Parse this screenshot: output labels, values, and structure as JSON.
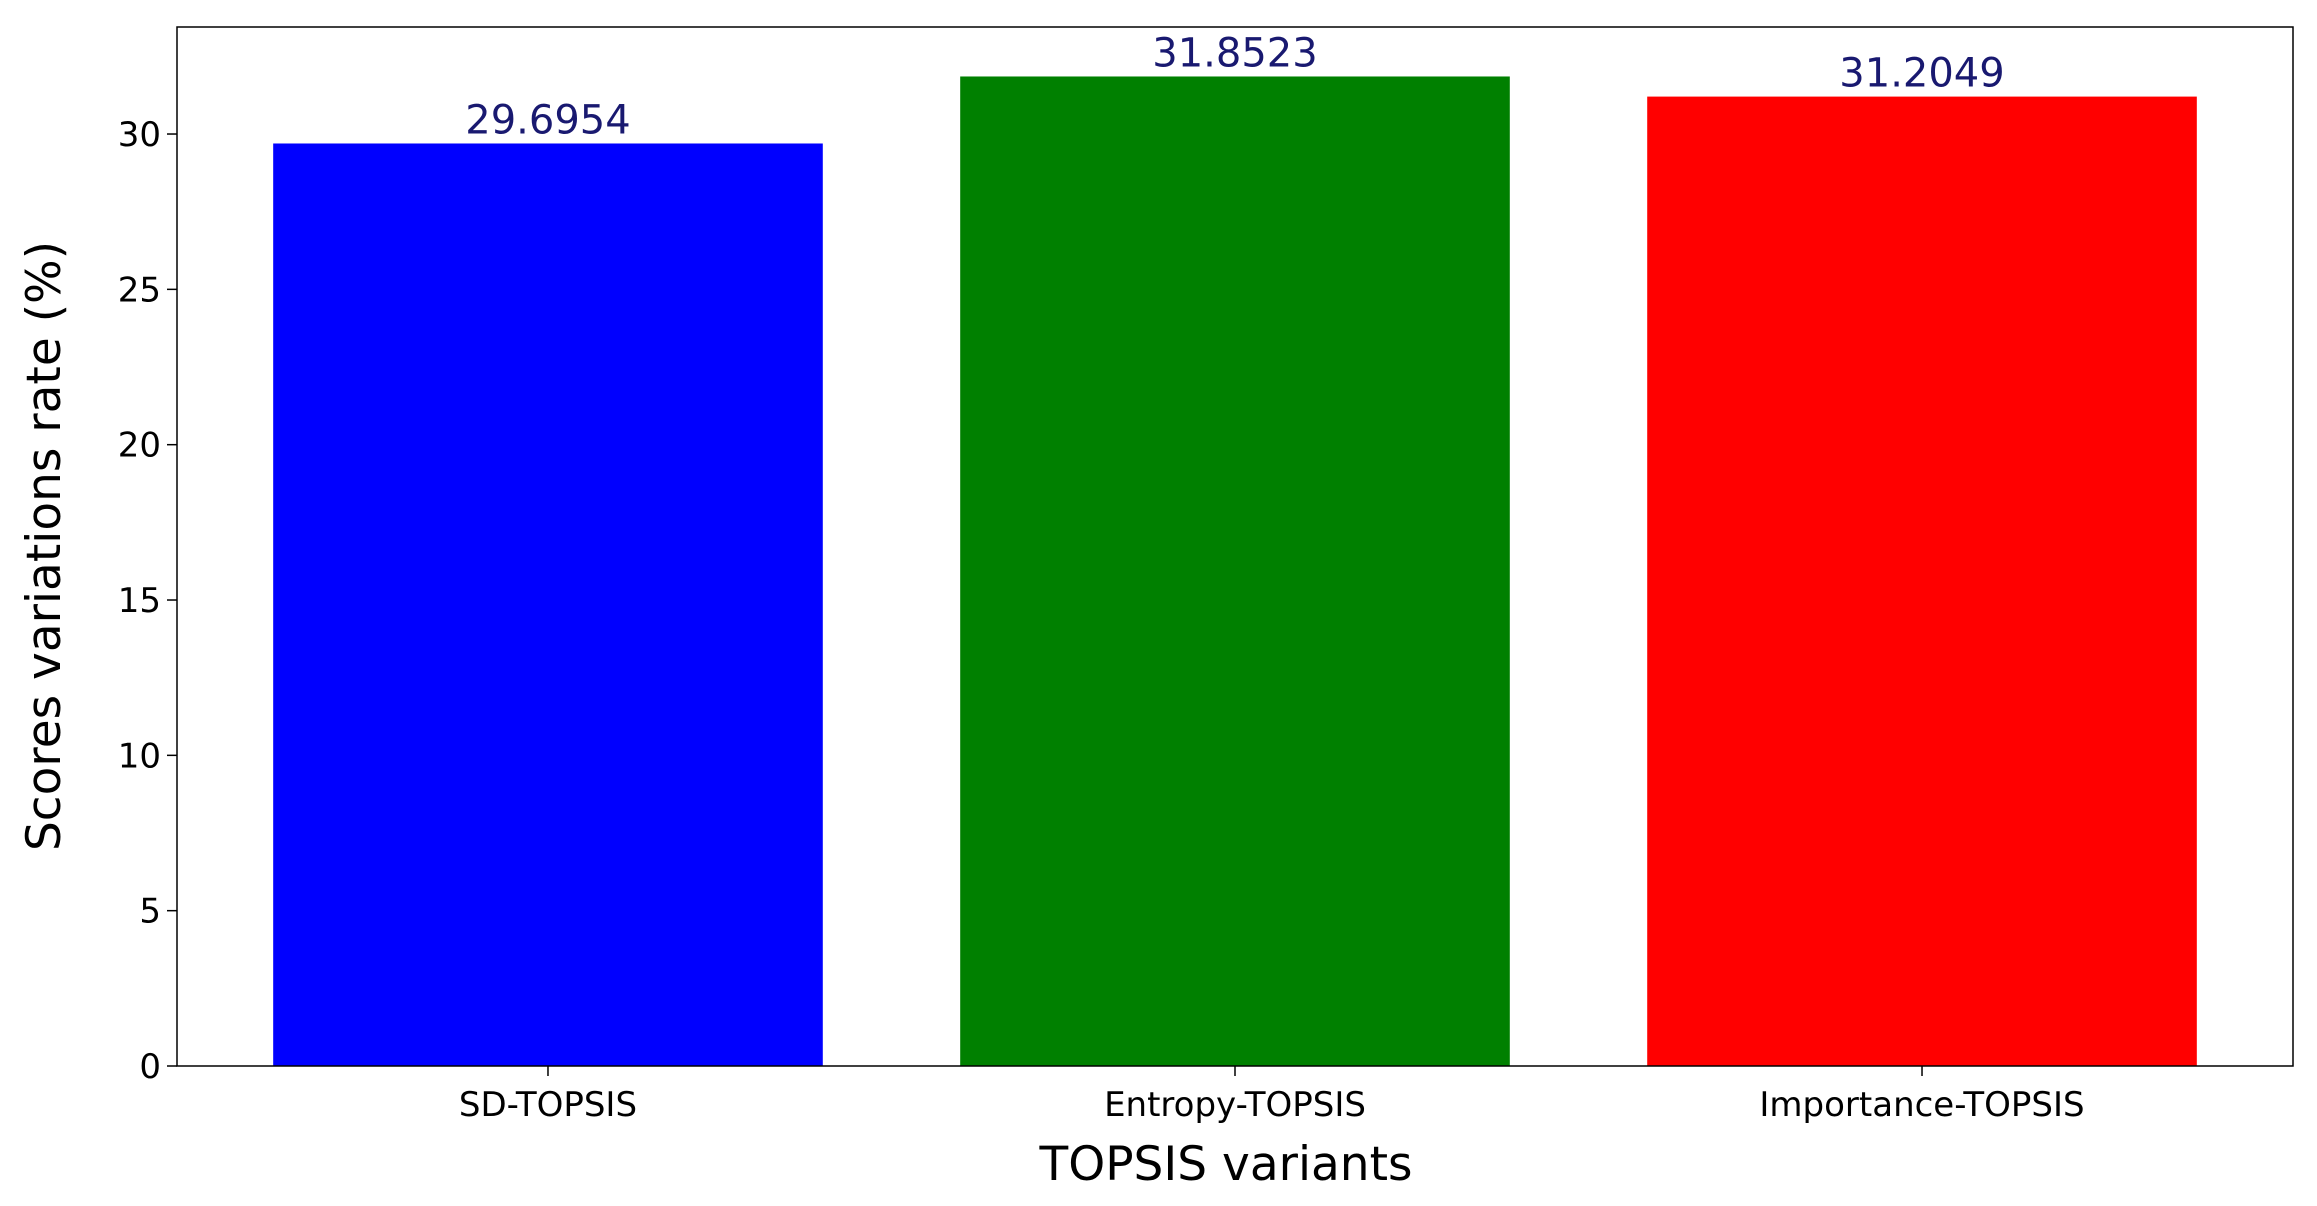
{
  "chart_data": {
    "type": "bar",
    "x_label": "TOPSIS variants",
    "y_label": "Scores variations rate (%)",
    "categories": [
      "SD-TOPSIS",
      "Entropy-TOPSIS",
      "Importance-TOPSIS"
    ],
    "values": [
      29.6954,
      31.8523,
      31.2049
    ],
    "colors": [
      "#0000ff",
      "#008000",
      "#ff0000"
    ],
    "value_label_color": "#191970",
    "ylim": [
      0,
      33.445
    ],
    "yticks": [
      0,
      5,
      10,
      15,
      20,
      25,
      30
    ]
  }
}
